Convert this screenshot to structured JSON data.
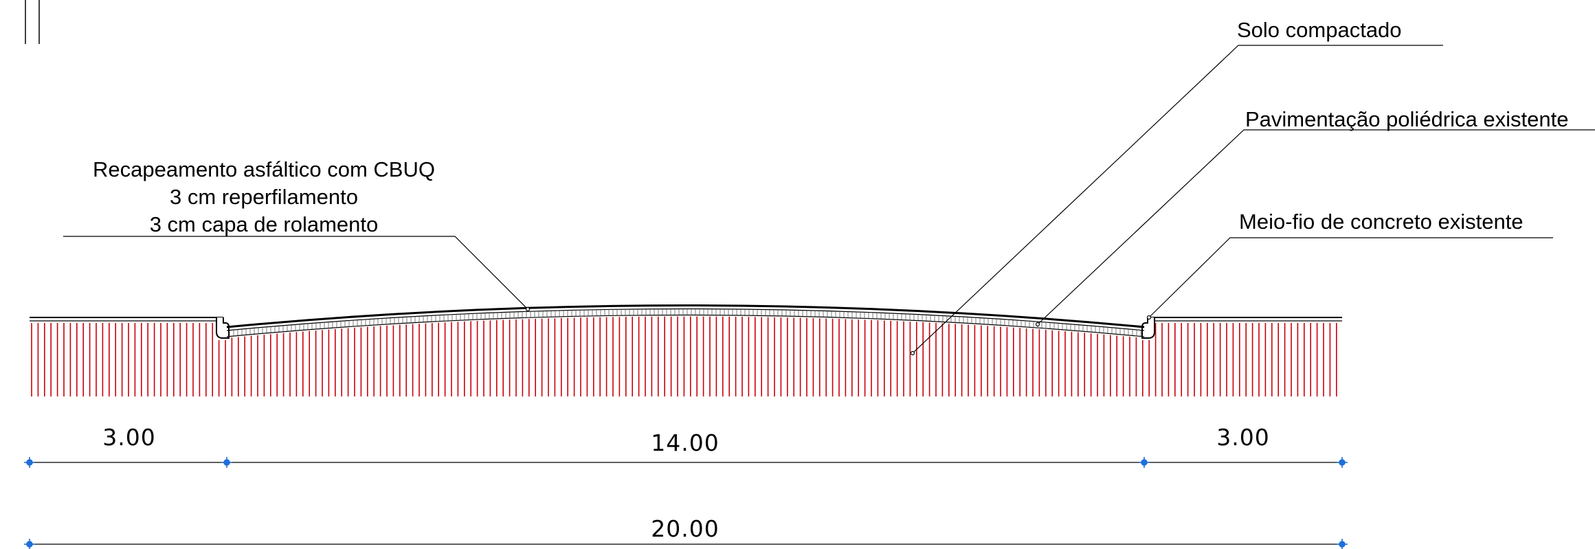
{
  "labels": {
    "recapeamento": [
      "Recapeamento asfáltico com CBUQ",
      "3 cm reperfilamento",
      "3 cm capa de rolamento"
    ],
    "solo": "Solo compactado",
    "pavimentacao": "Pavimentação poliédrica existente",
    "meio_fio": "Meio-fio de concreto existente"
  },
  "dimensions": {
    "left": "3.00",
    "center": "14.00",
    "right": "3.00",
    "total": "20.00"
  },
  "colors": {
    "line": "#000000",
    "hatch": "#c8000a",
    "dim_marker": "#1e6fd9"
  }
}
